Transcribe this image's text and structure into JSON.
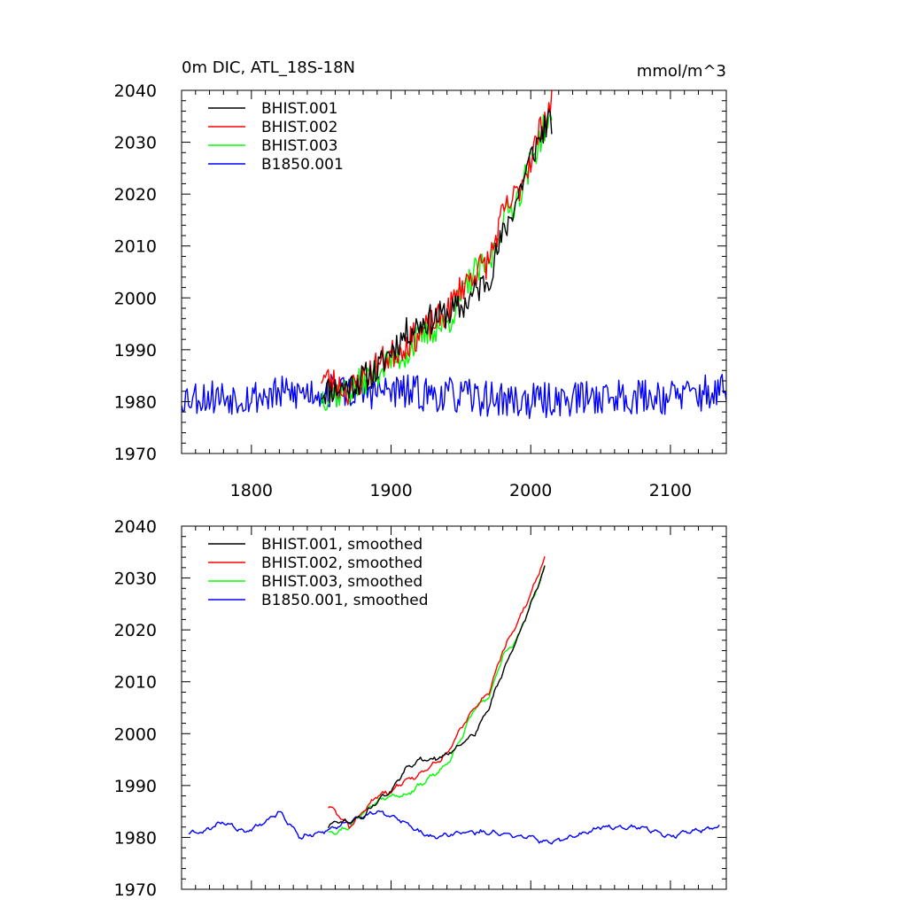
{
  "chart_data": [
    {
      "type": "line",
      "title": "0m DIC, ATL_18S-18N",
      "units": "mmol/m^3",
      "xlim": [
        1750,
        2140
      ],
      "ylim": [
        1970,
        2040
      ],
      "xticks": [
        1800,
        1900,
        2000,
        2100
      ],
      "yticks": [
        1970,
        1980,
        1990,
        2000,
        2010,
        2020,
        2030,
        2040
      ],
      "show_xtick_labels": true,
      "legend_position": "top-left",
      "series": [
        {
          "name": "BHIST.001",
          "color": "#000000",
          "x_start": 1850,
          "x_end": 2015,
          "anchors": [
            [
              1850,
              1982
            ],
            [
              1870,
              1983
            ],
            [
              1890,
              1986
            ],
            [
              1900,
              1990
            ],
            [
              1910,
              1993
            ],
            [
              1920,
              1995
            ],
            [
              1930,
              1996
            ],
            [
              1940,
              1997
            ],
            [
              1950,
              1998
            ],
            [
              1960,
              2001
            ],
            [
              1970,
              2004
            ],
            [
              1980,
              2012
            ],
            [
              1990,
              2019
            ],
            [
              2000,
              2027
            ],
            [
              2010,
              2033
            ],
            [
              2015,
              2034
            ]
          ],
          "noise": 3.0,
          "seed": 11
        },
        {
          "name": "BHIST.002",
          "color": "#ff0000",
          "x_start": 1850,
          "x_end": 2015,
          "anchors": [
            [
              1850,
              1985
            ],
            [
              1870,
              1982
            ],
            [
              1890,
              1987
            ],
            [
              1900,
              1989
            ],
            [
              1910,
              1991
            ],
            [
              1920,
              1993
            ],
            [
              1930,
              1995
            ],
            [
              1940,
              1997
            ],
            [
              1950,
              2002
            ],
            [
              1960,
              2005
            ],
            [
              1970,
              2007
            ],
            [
              1980,
              2016
            ],
            [
              1990,
              2020
            ],
            [
              2000,
              2027
            ],
            [
              2010,
              2035
            ],
            [
              2015,
              2037
            ]
          ],
          "noise": 3.0,
          "seed": 23
        },
        {
          "name": "BHIST.003",
          "color": "#00ff00",
          "x_start": 1850,
          "x_end": 2015,
          "anchors": [
            [
              1850,
              1981
            ],
            [
              1870,
              1982
            ],
            [
              1890,
              1986
            ],
            [
              1900,
              1988
            ],
            [
              1910,
              1989
            ],
            [
              1920,
              1992
            ],
            [
              1930,
              1994
            ],
            [
              1940,
              1995
            ],
            [
              1950,
              2000
            ],
            [
              1960,
              2005
            ],
            [
              1970,
              2006
            ],
            [
              1980,
              2015
            ],
            [
              1990,
              2019
            ],
            [
              2000,
              2026
            ],
            [
              2010,
              2033
            ],
            [
              2015,
              2033
            ]
          ],
          "noise": 3.0,
          "seed": 37
        },
        {
          "name": "B1850.001",
          "color": "#0000ff",
          "x_start": 1750,
          "x_end": 2140,
          "anchors": [
            [
              1750,
              1981
            ],
            [
              1800,
              1981
            ],
            [
              1850,
              1982
            ],
            [
              1900,
              1982
            ],
            [
              1950,
              1981
            ],
            [
              2000,
              1980
            ],
            [
              2050,
              1981
            ],
            [
              2100,
              1981
            ],
            [
              2140,
              1982
            ]
          ],
          "noise": 3.5,
          "seed": 53
        }
      ]
    },
    {
      "type": "line",
      "title": "",
      "units": "",
      "xlim": [
        1750,
        2140
      ],
      "ylim": [
        1970,
        2040
      ],
      "xticks": [
        1800,
        1900,
        2000,
        2100
      ],
      "yticks": [
        1970,
        1980,
        1990,
        2000,
        2010,
        2020,
        2030,
        2040
      ],
      "show_xtick_labels": false,
      "legend_position": "top-left",
      "series": [
        {
          "name": "BHIST.001, smoothed",
          "color": "#000000",
          "x_start": 1855,
          "x_end": 2010,
          "anchors": [
            [
              1855,
              1982
            ],
            [
              1860,
              1983
            ],
            [
              1870,
              1983
            ],
            [
              1880,
              1984
            ],
            [
              1890,
              1987
            ],
            [
              1900,
              1989
            ],
            [
              1910,
              1993
            ],
            [
              1920,
              1995
            ],
            [
              1930,
              1995
            ],
            [
              1940,
              1996
            ],
            [
              1950,
              1998
            ],
            [
              1960,
              2000
            ],
            [
              1970,
              2005
            ],
            [
              1980,
              2012
            ],
            [
              1990,
              2018
            ],
            [
              2000,
              2025
            ],
            [
              2010,
              2032
            ]
          ],
          "noise": 0.5,
          "seed": 71
        },
        {
          "name": "BHIST.002, smoothed",
          "color": "#ff0000",
          "x_start": 1855,
          "x_end": 2010,
          "anchors": [
            [
              1855,
              1986
            ],
            [
              1860,
              1985
            ],
            [
              1870,
              1982
            ],
            [
              1880,
              1985
            ],
            [
              1890,
              1988
            ],
            [
              1900,
              1989
            ],
            [
              1910,
              1991
            ],
            [
              1920,
              1992
            ],
            [
              1930,
              1994
            ],
            [
              1940,
              1996
            ],
            [
              1950,
              2001
            ],
            [
              1960,
              2005
            ],
            [
              1970,
              2008
            ],
            [
              1980,
              2016
            ],
            [
              1990,
              2021
            ],
            [
              2000,
              2027
            ],
            [
              2010,
              2034
            ]
          ],
          "noise": 0.5,
          "seed": 83
        },
        {
          "name": "BHIST.003, smoothed",
          "color": "#00ff00",
          "x_start": 1855,
          "x_end": 2010,
          "anchors": [
            [
              1855,
              1981
            ],
            [
              1860,
              1981
            ],
            [
              1870,
              1982
            ],
            [
              1880,
              1985
            ],
            [
              1890,
              1987
            ],
            [
              1900,
              1988
            ],
            [
              1910,
              1988
            ],
            [
              1920,
              1990
            ],
            [
              1930,
              1992
            ],
            [
              1940,
              1994
            ],
            [
              1950,
              1999
            ],
            [
              1960,
              2005
            ],
            [
              1970,
              2007
            ],
            [
              1980,
              2015
            ],
            [
              1990,
              2018
            ],
            [
              2000,
              2025
            ],
            [
              2010,
              2032
            ]
          ],
          "noise": 0.5,
          "seed": 97
        },
        {
          "name": "B1850.001, smoothed",
          "color": "#0000ff",
          "x_start": 1755,
          "x_end": 2135,
          "anchors": [
            [
              1755,
              1981
            ],
            [
              1765,
              1981
            ],
            [
              1780,
              1983
            ],
            [
              1795,
              1981
            ],
            [
              1810,
              1983
            ],
            [
              1820,
              1985
            ],
            [
              1835,
              1980
            ],
            [
              1850,
              1981
            ],
            [
              1870,
              1983
            ],
            [
              1890,
              1985
            ],
            [
              1910,
              1983
            ],
            [
              1920,
              1981
            ],
            [
              1930,
              1980
            ],
            [
              1950,
              1981
            ],
            [
              1970,
              1981
            ],
            [
              2000,
              1980
            ],
            [
              2010,
              1979
            ],
            [
              2030,
              1980
            ],
            [
              2050,
              1982
            ],
            [
              2080,
              1982
            ],
            [
              2100,
              1980
            ],
            [
              2110,
              1981
            ],
            [
              2135,
              1982
            ]
          ],
          "noise": 0.5,
          "seed": 109
        }
      ]
    }
  ]
}
